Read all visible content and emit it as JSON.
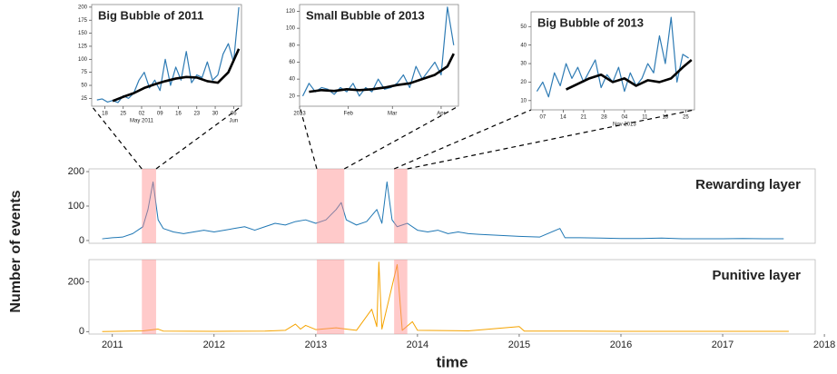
{
  "chart_data": [
    {
      "type": "line",
      "title": "Big Bubble of 2011",
      "xlim": [
        "2011-04-13",
        "2011-06-09"
      ],
      "ylim": [
        10,
        205
      ],
      "yticks": [
        25,
        50,
        75,
        100,
        125,
        150,
        175,
        200
      ],
      "xticks": [
        {
          "value": "2011-04-18",
          "label": "18"
        },
        {
          "value": "2011-04-25",
          "label": "25"
        },
        {
          "value": "2011-05-02",
          "label": "02"
        },
        {
          "value": "2011-05-09",
          "label": "09"
        },
        {
          "value": "2011-05-16",
          "label": "16"
        },
        {
          "value": "2011-05-23",
          "label": "23"
        },
        {
          "value": "2011-05-30",
          "label": "30"
        },
        {
          "value": "2011-06-06",
          "label": "06"
        }
      ],
      "xsublabels": [
        {
          "value": "2011-05-02",
          "label": "May 2011"
        },
        {
          "value": "2011-06-06",
          "label": "Jun"
        }
      ],
      "series": [
        {
          "color": "#2e7bb4",
          "linewidth": 1.2,
          "x": [
            "2011-04-15",
            "2011-04-17",
            "2011-04-19",
            "2011-04-21",
            "2011-04-23",
            "2011-04-25",
            "2011-04-27",
            "2011-04-29",
            "2011-05-01",
            "2011-05-03",
            "2011-05-05",
            "2011-05-07",
            "2011-05-09",
            "2011-05-11",
            "2011-05-13",
            "2011-05-15",
            "2011-05-17",
            "2011-05-19",
            "2011-05-21",
            "2011-05-23",
            "2011-05-25",
            "2011-05-27",
            "2011-05-29",
            "2011-05-31",
            "2011-06-02",
            "2011-06-04",
            "2011-06-06",
            "2011-06-08"
          ],
          "values": [
            22,
            24,
            18,
            21,
            17,
            30,
            25,
            35,
            60,
            75,
            45,
            60,
            40,
            100,
            50,
            85,
            60,
            115,
            55,
            70,
            65,
            95,
            60,
            70,
            110,
            130,
            95,
            200
          ]
        },
        {
          "color": "#000000",
          "linewidth": 2.6,
          "x": [
            "2011-04-21",
            "2011-04-25",
            "2011-04-29",
            "2011-05-03",
            "2011-05-07",
            "2011-05-11",
            "2011-05-15",
            "2011-05-19",
            "2011-05-23",
            "2011-05-27",
            "2011-05-31",
            "2011-06-04",
            "2011-06-08"
          ],
          "values": [
            20,
            28,
            35,
            45,
            52,
            58,
            63,
            66,
            65,
            58,
            55,
            75,
            120
          ]
        }
      ]
    },
    {
      "type": "line",
      "title": "Small Bubble of 2013",
      "xlim": [
        "2013-01-01",
        "2013-04-12"
      ],
      "ylim": [
        8,
        128
      ],
      "yticks": [
        20,
        40,
        60,
        80,
        100,
        120
      ],
      "xticks": [
        {
          "value": "2013-01-01",
          "label": "2013"
        },
        {
          "value": "2013-02-01",
          "label": "Feb"
        },
        {
          "value": "2013-03-01",
          "label": "Mar"
        },
        {
          "value": "2013-04-01",
          "label": "Apr"
        }
      ],
      "series": [
        {
          "color": "#2e7bb4",
          "linewidth": 1.2,
          "x": [
            "2013-01-03",
            "2013-01-07",
            "2013-01-11",
            "2013-01-15",
            "2013-01-19",
            "2013-01-23",
            "2013-01-27",
            "2013-01-31",
            "2013-02-04",
            "2013-02-08",
            "2013-02-12",
            "2013-02-16",
            "2013-02-20",
            "2013-02-24",
            "2013-02-28",
            "2013-03-04",
            "2013-03-08",
            "2013-03-12",
            "2013-03-16",
            "2013-03-20",
            "2013-03-24",
            "2013-03-28",
            "2013-04-01",
            "2013-04-05",
            "2013-04-09"
          ],
          "values": [
            20,
            35,
            25,
            30,
            28,
            22,
            30,
            25,
            35,
            20,
            30,
            25,
            40,
            28,
            30,
            35,
            45,
            30,
            55,
            40,
            50,
            60,
            45,
            125,
            80
          ]
        },
        {
          "color": "#000000",
          "linewidth": 2.6,
          "x": [
            "2013-01-07",
            "2013-01-15",
            "2013-01-23",
            "2013-01-31",
            "2013-02-08",
            "2013-02-16",
            "2013-02-24",
            "2013-03-04",
            "2013-03-12",
            "2013-03-20",
            "2013-03-28",
            "2013-04-05",
            "2013-04-09"
          ],
          "values": [
            25,
            27,
            26,
            28,
            27,
            28,
            30,
            33,
            35,
            40,
            45,
            55,
            70
          ]
        }
      ]
    },
    {
      "type": "line",
      "title": "Big Bubble of 2013",
      "xlim": [
        "2013-10-03",
        "2013-11-28"
      ],
      "ylim": [
        5,
        58
      ],
      "yticks": [
        10,
        20,
        30,
        40,
        50
      ],
      "xticks": [
        {
          "value": "2013-10-07",
          "label": "07"
        },
        {
          "value": "2013-10-14",
          "label": "14"
        },
        {
          "value": "2013-10-21",
          "label": "21"
        },
        {
          "value": "2013-10-28",
          "label": "28"
        },
        {
          "value": "2013-11-04",
          "label": "04"
        },
        {
          "value": "2013-11-11",
          "label": "11"
        },
        {
          "value": "2013-11-18",
          "label": "18"
        },
        {
          "value": "2013-11-25",
          "label": "25"
        }
      ],
      "xsublabels": [
        {
          "value": "2013-11-04",
          "label": "Nov 2013"
        }
      ],
      "series": [
        {
          "color": "#2e7bb4",
          "linewidth": 1.2,
          "x": [
            "2013-10-05",
            "2013-10-07",
            "2013-10-09",
            "2013-10-11",
            "2013-10-13",
            "2013-10-15",
            "2013-10-17",
            "2013-10-19",
            "2013-10-21",
            "2013-10-23",
            "2013-10-25",
            "2013-10-27",
            "2013-10-29",
            "2013-10-31",
            "2013-11-02",
            "2013-11-04",
            "2013-11-06",
            "2013-11-08",
            "2013-11-10",
            "2013-11-12",
            "2013-11-14",
            "2013-11-16",
            "2013-11-18",
            "2013-11-20",
            "2013-11-22",
            "2013-11-24",
            "2013-11-26"
          ],
          "values": [
            15,
            20,
            12,
            25,
            18,
            30,
            22,
            28,
            20,
            26,
            32,
            17,
            24,
            20,
            28,
            15,
            25,
            18,
            22,
            30,
            25,
            45,
            30,
            55,
            20,
            35,
            33
          ]
        },
        {
          "color": "#000000",
          "linewidth": 2.6,
          "x": [
            "2013-10-15",
            "2013-10-19",
            "2013-10-23",
            "2013-10-27",
            "2013-10-31",
            "2013-11-04",
            "2013-11-08",
            "2013-11-12",
            "2013-11-16",
            "2013-11-20",
            "2013-11-24",
            "2013-11-27"
          ],
          "values": [
            16,
            19,
            22,
            24,
            20,
            22,
            18,
            21,
            20,
            22,
            28,
            32
          ]
        }
      ]
    },
    {
      "type": "line",
      "title": "Rewarding layer",
      "ylabel": "Number of events",
      "xlim": [
        2010.77,
        2017.91
      ],
      "ylim": [
        -8,
        208
      ],
      "yticks": [
        0,
        100,
        200
      ],
      "highlights": [
        [
          2011.29,
          2011.43
        ],
        [
          2013.01,
          2013.28
        ],
        [
          2013.77,
          2013.9
        ]
      ],
      "series": [
        {
          "color": "#1f77b4",
          "linewidth": 1,
          "x": [
            2010.9,
            2011.0,
            2011.1,
            2011.2,
            2011.3,
            2011.35,
            2011.4,
            2011.45,
            2011.5,
            2011.6,
            2011.7,
            2011.8,
            2011.9,
            2012.0,
            2012.1,
            2012.2,
            2012.3,
            2012.4,
            2012.5,
            2012.6,
            2012.7,
            2012.8,
            2012.9,
            2013.0,
            2013.1,
            2013.2,
            2013.25,
            2013.3,
            2013.4,
            2013.5,
            2013.6,
            2013.65,
            2013.7,
            2013.75,
            2013.8,
            2013.9,
            2014.0,
            2014.1,
            2014.2,
            2014.3,
            2014.4,
            2014.5,
            2014.6,
            2014.8,
            2015.0,
            2015.2,
            2015.4,
            2015.45,
            2015.6,
            2015.8,
            2016.0,
            2016.2,
            2016.4,
            2016.6,
            2016.8,
            2017.0,
            2017.2,
            2017.4,
            2017.6
          ],
          "values": [
            5,
            8,
            10,
            20,
            40,
            90,
            170,
            60,
            35,
            25,
            20,
            25,
            30,
            25,
            30,
            35,
            40,
            30,
            40,
            50,
            45,
            55,
            60,
            50,
            60,
            90,
            110,
            60,
            45,
            55,
            90,
            50,
            170,
            60,
            40,
            50,
            30,
            25,
            30,
            20,
            25,
            20,
            18,
            15,
            12,
            10,
            35,
            8,
            8,
            7,
            6,
            6,
            7,
            5,
            5,
            5,
            6,
            5,
            5
          ]
        }
      ]
    },
    {
      "type": "line",
      "title": "Punitive layer",
      "xlabel": "time",
      "xlim": [
        2010.77,
        2017.91
      ],
      "ylim": [
        -10,
        290
      ],
      "yticks": [
        0,
        200
      ],
      "xticks": [
        2011,
        2012,
        2013,
        2014,
        2015,
        2016,
        2017,
        2018
      ],
      "highlights": [
        [
          2011.29,
          2011.43
        ],
        [
          2013.01,
          2013.28
        ],
        [
          2013.77,
          2013.9
        ]
      ],
      "series": [
        {
          "color": "#f5a300",
          "linewidth": 1,
          "x": [
            2010.9,
            2011.3,
            2011.45,
            2011.5,
            2012.0,
            2012.5,
            2012.7,
            2012.8,
            2012.85,
            2012.9,
            2013.0,
            2013.2,
            2013.4,
            2013.55,
            2013.6,
            2013.62,
            2013.65,
            2013.8,
            2013.85,
            2013.95,
            2014.0,
            2014.5,
            2015.0,
            2015.05,
            2015.5,
            2016.0,
            2017.0,
            2017.65
          ],
          "values": [
            0,
            3,
            10,
            2,
            1,
            2,
            5,
            30,
            10,
            25,
            8,
            15,
            5,
            90,
            20,
            280,
            10,
            270,
            5,
            40,
            5,
            3,
            20,
            2,
            2,
            1,
            1,
            1
          ]
        }
      ]
    }
  ]
}
